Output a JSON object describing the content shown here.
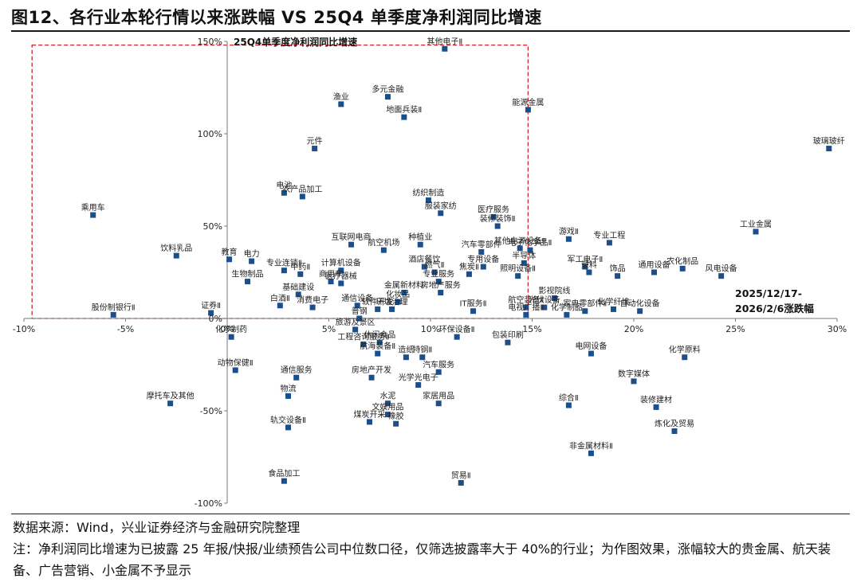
{
  "title": "图12、各行业本轮行情以来涨跌幅  VS 25Q4 单季度净利润同比增速",
  "source": "数据来源：Wind，兴业证券经济与金融研究院整理",
  "note": "注：净利润同比增速为已披露 25 年报/快报/业绩预告公司中位数口径，仅筛选披露率大于 40%的行业；为作图效果，涨幅较大的贵金属、航天装备、广告营销、小金属不予显示",
  "chart_data": {
    "type": "scatter",
    "title": "",
    "xlabel": "2025/12/17-2026/2/6涨跌幅",
    "ylabel": "25Q4单季度净利润同比增速",
    "xlim": [
      -10,
      30
    ],
    "ylim": [
      -100,
      150
    ],
    "x_ticks": [
      "-10%",
      "-5%",
      "0%",
      "5%",
      "10%",
      "15%",
      "20%",
      "25%",
      "30%"
    ],
    "y_ticks": [
      "150%",
      "100%",
      "50%",
      "0%",
      "-50%",
      "-100%"
    ],
    "highlight_box": {
      "x": [
        -9.6,
        14.8
      ],
      "y": [
        0,
        148
      ]
    },
    "marker_color": "#1a4f8c",
    "grid": false,
    "points": [
      {
        "label": "其他电子Ⅱ",
        "x": 10.7,
        "y": 146
      },
      {
        "label": "多元金融",
        "x": 7.9,
        "y": 120
      },
      {
        "label": "渔业",
        "x": 5.6,
        "y": 116
      },
      {
        "label": "地面兵装Ⅱ",
        "x": 8.7,
        "y": 109
      },
      {
        "label": "能源金属",
        "x": 14.8,
        "y": 113
      },
      {
        "label": "元件",
        "x": 4.3,
        "y": 92
      },
      {
        "label": "玻璃玻纤",
        "x": 29.6,
        "y": 92
      },
      {
        "label": "电池",
        "x": 2.8,
        "y": 68
      },
      {
        "label": "农产品加工",
        "x": 3.7,
        "y": 66
      },
      {
        "label": "纺织制造",
        "x": 9.9,
        "y": 64
      },
      {
        "label": "乘用车",
        "x": -6.6,
        "y": 56
      },
      {
        "label": "服装家纺",
        "x": 10.5,
        "y": 57
      },
      {
        "label": "医疗服务",
        "x": 13.1,
        "y": 55
      },
      {
        "label": "工业金属",
        "x": 26.0,
        "y": 47
      },
      {
        "label": "装修装饰Ⅱ",
        "x": 13.3,
        "y": 50
      },
      {
        "label": "游戏Ⅱ",
        "x": 16.8,
        "y": 43
      },
      {
        "label": "专业工程",
        "x": 18.8,
        "y": 41
      },
      {
        "label": "互联网电商",
        "x": 6.1,
        "y": 40
      },
      {
        "label": "航空机场",
        "x": 7.7,
        "y": 37
      },
      {
        "label": "种植业",
        "x": 9.5,
        "y": 40
      },
      {
        "label": "汽车零部件",
        "x": 12.5,
        "y": 36
      },
      {
        "label": "其他电源设备Ⅱ",
        "x": 14.4,
        "y": 38
      },
      {
        "label": "电子化学品Ⅱ",
        "x": 14.9,
        "y": 37
      },
      {
        "label": "饮料乳品",
        "x": -2.5,
        "y": 34
      },
      {
        "label": "教育",
        "x": 0.1,
        "y": 32
      },
      {
        "label": "电力",
        "x": 1.2,
        "y": 31
      },
      {
        "label": "半导体",
        "x": 14.6,
        "y": 30
      },
      {
        "label": "酒店餐饮",
        "x": 9.7,
        "y": 28
      },
      {
        "label": "专用设备",
        "x": 12.6,
        "y": 28
      },
      {
        "label": "军工电子Ⅱ",
        "x": 17.6,
        "y": 28
      },
      {
        "label": "农化制品",
        "x": 22.4,
        "y": 27
      },
      {
        "label": "风电设备",
        "x": 24.3,
        "y": 23
      },
      {
        "label": "专业连锁Ⅱ",
        "x": 2.8,
        "y": 26
      },
      {
        "label": "计算机设备",
        "x": 5.6,
        "y": 26
      },
      {
        "label": "燃气Ⅱ",
        "x": 10.2,
        "y": 25
      },
      {
        "label": "焦炭Ⅱ",
        "x": 11.9,
        "y": 24
      },
      {
        "label": "照明设备Ⅱ",
        "x": 14.3,
        "y": 23
      },
      {
        "label": "塑料",
        "x": 17.8,
        "y": 25
      },
      {
        "label": "饰品",
        "x": 19.2,
        "y": 23
      },
      {
        "label": "通用设备",
        "x": 21.0,
        "y": 25
      },
      {
        "label": "中药Ⅱ",
        "x": 3.6,
        "y": 24
      },
      {
        "label": "商用车",
        "x": 5.1,
        "y": 20
      },
      {
        "label": "医疗器械",
        "x": 5.6,
        "y": 19
      },
      {
        "label": "生物制品",
        "x": 1.0,
        "y": 20
      },
      {
        "label": "专业服务",
        "x": 10.4,
        "y": 20
      },
      {
        "label": "基础建设",
        "x": 3.5,
        "y": 13
      },
      {
        "label": "金属新材料",
        "x": 8.7,
        "y": 14
      },
      {
        "label": "房地产服务",
        "x": 10.5,
        "y": 14
      },
      {
        "label": "影视院线",
        "x": 16.1,
        "y": 11
      },
      {
        "label": "光伏设备",
        "x": 15.6,
        "y": 6
      },
      {
        "label": "白酒Ⅱ",
        "x": 2.6,
        "y": 7
      },
      {
        "label": "消费电子",
        "x": 4.2,
        "y": 6
      },
      {
        "label": "通信设备",
        "x": 6.4,
        "y": 7
      },
      {
        "label": "化妆品",
        "x": 8.4,
        "y": 9
      },
      {
        "label": "航空装备Ⅱ",
        "x": 14.7,
        "y": 6
      },
      {
        "label": "家电零部件Ⅱ",
        "x": 17.6,
        "y": 4
      },
      {
        "label": "化学纤维",
        "x": 19.0,
        "y": 5
      },
      {
        "label": "自动化设备",
        "x": 20.3,
        "y": 4
      },
      {
        "label": "股份制银行Ⅱ",
        "x": -5.6,
        "y": 2
      },
      {
        "label": "证券Ⅱ",
        "x": -0.8,
        "y": 3
      },
      {
        "label": "软件开发",
        "x": 7.4,
        "y": 5
      },
      {
        "label": "环境治理",
        "x": 8.1,
        "y": 5
      },
      {
        "label": "IT服务Ⅱ",
        "x": 12.1,
        "y": 4
      },
      {
        "label": "电视广播Ⅱ",
        "x": 14.7,
        "y": 2
      },
      {
        "label": "化学制品",
        "x": 16.7,
        "y": 2
      },
      {
        "label": "普钢",
        "x": 6.5,
        "y": 0
      },
      {
        "label": "化学制药",
        "x": 0.2,
        "y": -10
      },
      {
        "label": "旅游及景区",
        "x": 6.3,
        "y": -6
      },
      {
        "label": "环保设备Ⅱ",
        "x": 11.3,
        "y": -10
      },
      {
        "label": "工程咨询服务Ⅱ",
        "x": 6.7,
        "y": -14
      },
      {
        "label": "休闲食品",
        "x": 7.5,
        "y": -13
      },
      {
        "label": "包装印刷",
        "x": 13.8,
        "y": -13
      },
      {
        "label": "造纸",
        "x": 8.8,
        "y": -21
      },
      {
        "label": "航海装备Ⅱ",
        "x": 7.4,
        "y": -19
      },
      {
        "label": "特钢Ⅱ",
        "x": 9.6,
        "y": -21
      },
      {
        "label": "电网设备",
        "x": 17.9,
        "y": -19
      },
      {
        "label": "化学原料",
        "x": 22.5,
        "y": -21
      },
      {
        "label": "动物保健Ⅱ",
        "x": 0.4,
        "y": -28
      },
      {
        "label": "通信服务",
        "x": 3.4,
        "y": -32
      },
      {
        "label": "房地产开发",
        "x": 7.1,
        "y": -32
      },
      {
        "label": "汽车服务",
        "x": 10.4,
        "y": -29
      },
      {
        "label": "数字媒体",
        "x": 20.0,
        "y": -34
      },
      {
        "label": "光学光电子",
        "x": 9.4,
        "y": -36
      },
      {
        "label": "物流",
        "x": 3.0,
        "y": -42
      },
      {
        "label": "摩托车及其他",
        "x": -2.8,
        "y": -46
      },
      {
        "label": "水泥",
        "x": 7.9,
        "y": -46
      },
      {
        "label": "装修建材",
        "x": 21.1,
        "y": -48
      },
      {
        "label": "家居用品",
        "x": 10.4,
        "y": -46
      },
      {
        "label": "综合Ⅱ",
        "x": 16.8,
        "y": -47
      },
      {
        "label": "文娱用品",
        "x": 7.9,
        "y": -52
      },
      {
        "label": "煤炭开采",
        "x": 7.0,
        "y": -56
      },
      {
        "label": "橡胶",
        "x": 8.3,
        "y": -57
      },
      {
        "label": "炼化及贸易",
        "x": 22.0,
        "y": -61
      },
      {
        "label": "轨交设备Ⅱ",
        "x": 3.0,
        "y": -59
      },
      {
        "label": "非金属材料Ⅱ",
        "x": 17.9,
        "y": -73
      },
      {
        "label": "食品加工",
        "x": 2.8,
        "y": -88
      },
      {
        "label": "贸易Ⅱ",
        "x": 11.5,
        "y": -89
      }
    ]
  }
}
